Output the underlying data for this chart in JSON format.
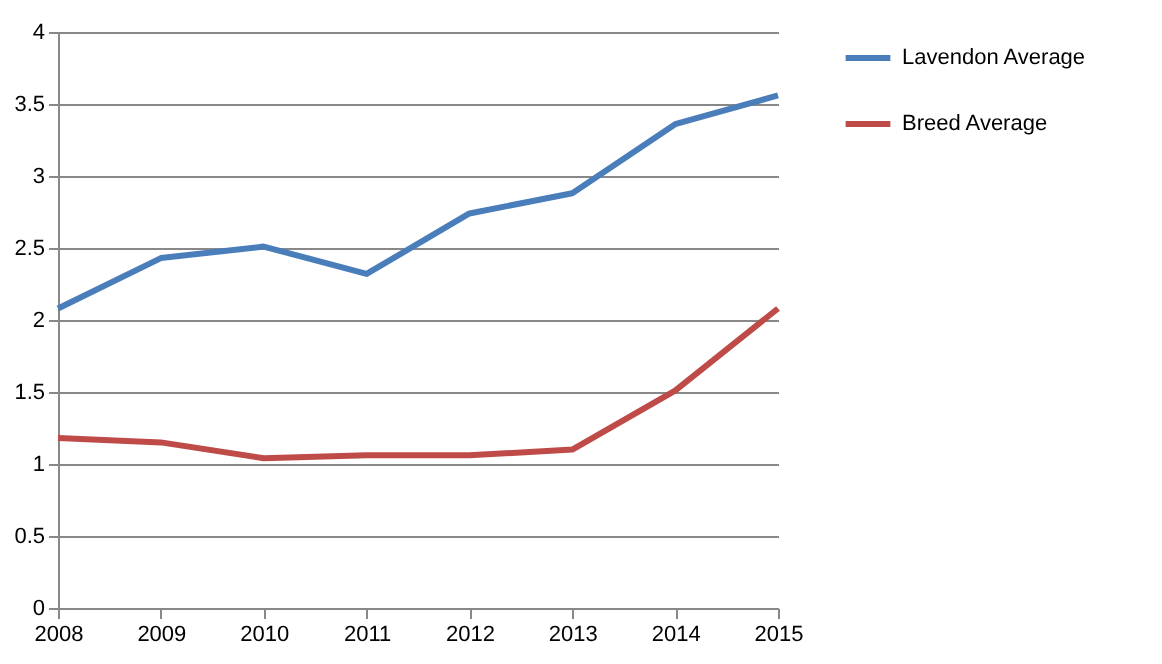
{
  "chart_data": {
    "type": "line",
    "categories": [
      "2008",
      "2009",
      "2010",
      "2011",
      "2012",
      "2013",
      "2014",
      "2015"
    ],
    "series": [
      {
        "name": "Lavendon  Average",
        "color": "#4a7ebb",
        "values": [
          2.08,
          2.43,
          2.51,
          2.32,
          2.74,
          2.88,
          3.36,
          3.56
        ]
      },
      {
        "name": "Breed Average",
        "color": "#be4b48",
        "values": [
          1.18,
          1.15,
          1.04,
          1.06,
          1.06,
          1.1,
          1.51,
          2.08
        ]
      }
    ],
    "ylim": [
      0,
      4
    ],
    "yticks": [
      0,
      0.5,
      1,
      1.5,
      2,
      2.5,
      3,
      3.5,
      4
    ],
    "grid": "y",
    "legend": "right"
  }
}
